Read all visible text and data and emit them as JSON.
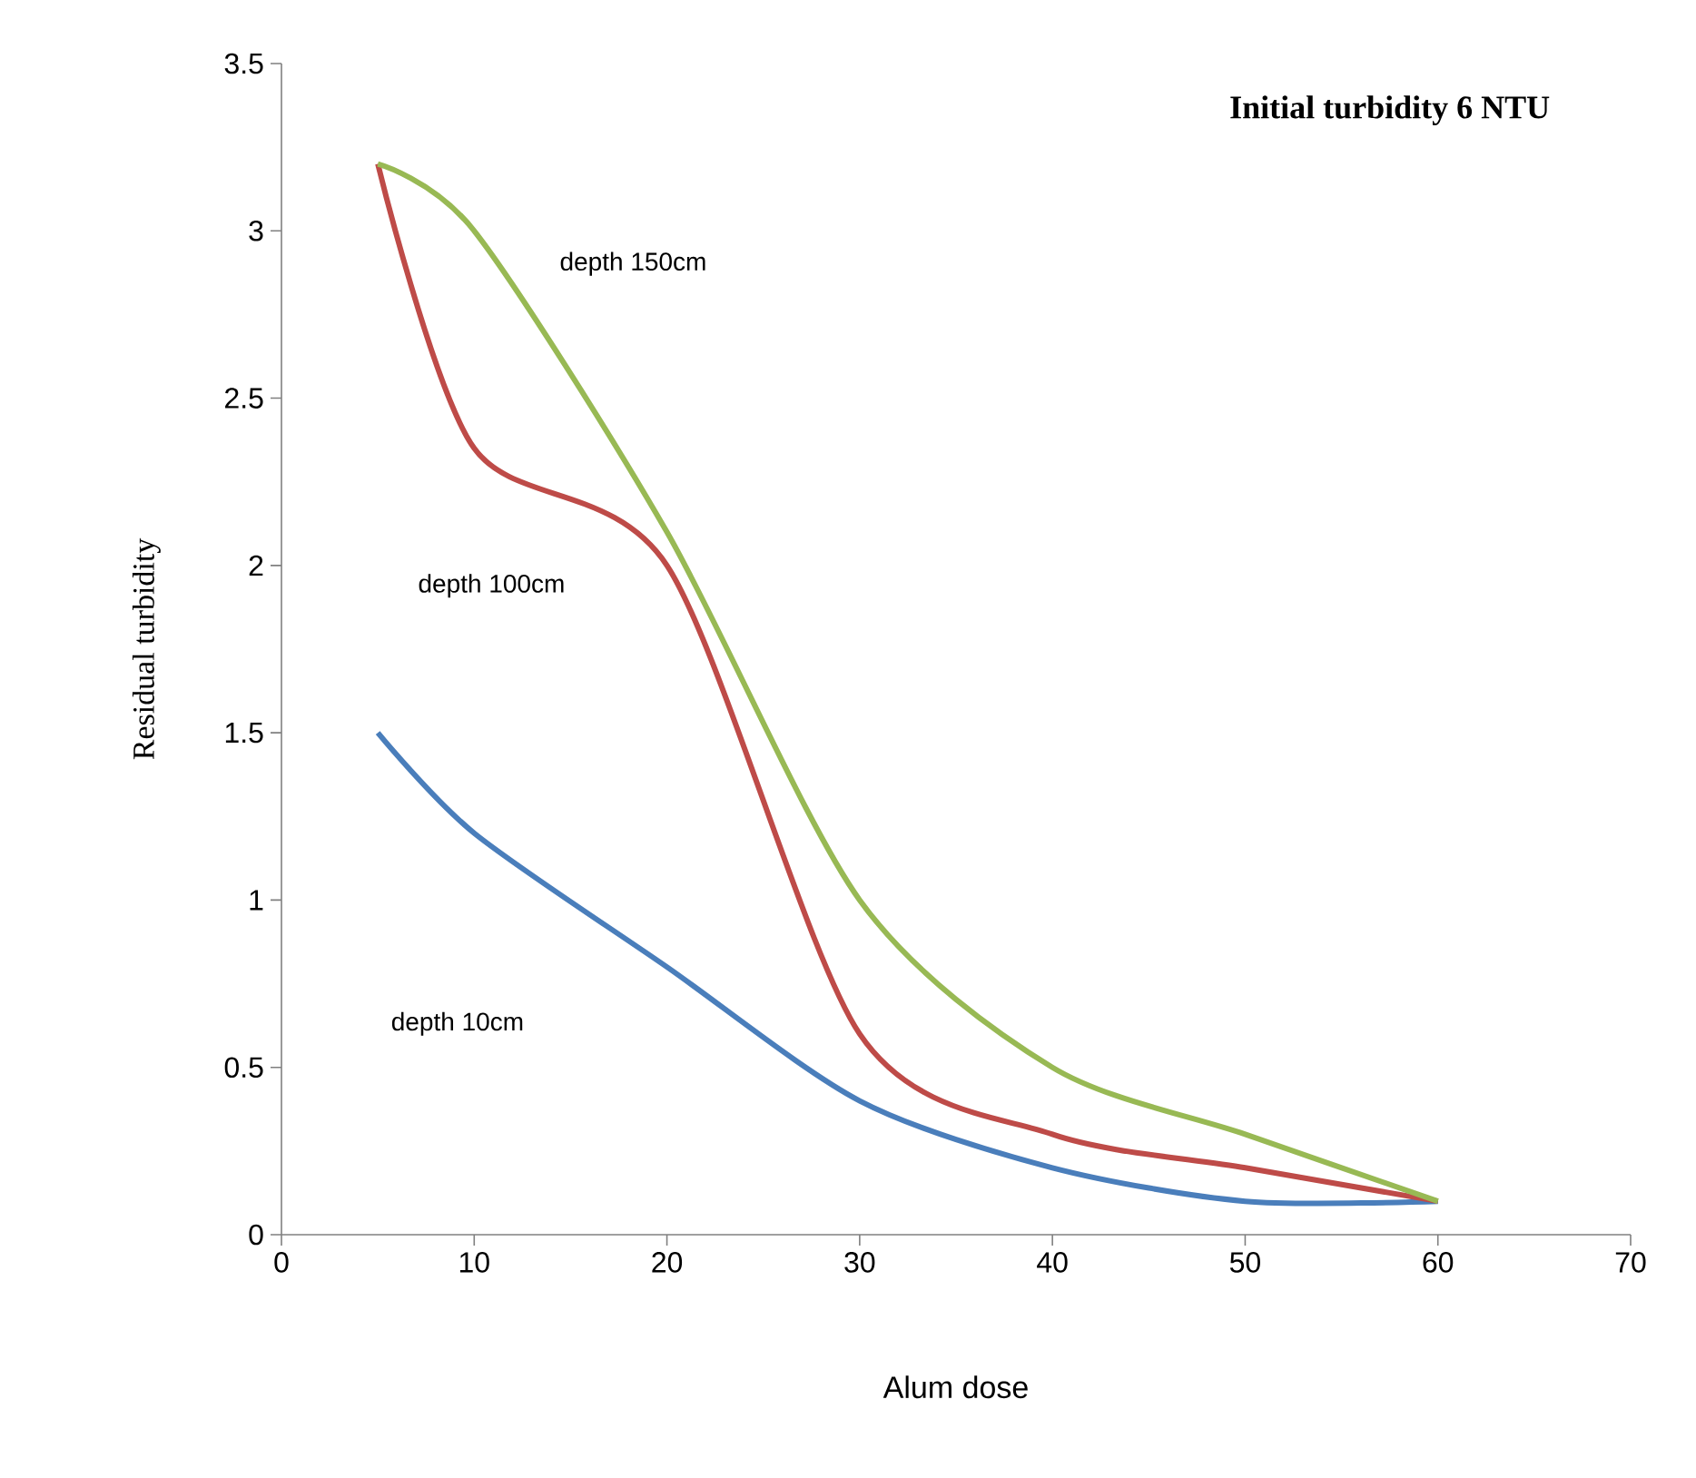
{
  "chart_data": {
    "type": "line",
    "title": "Initial turbidity 6 NTU",
    "xlabel": "Alum dose",
    "ylabel": "Residual turbidity",
    "x": [
      5,
      10,
      20,
      30,
      40,
      50,
      60
    ],
    "series": [
      {
        "color": "#4a7ebb",
        "values": [
          1.5,
          1.2,
          0.8,
          0.4,
          0.2,
          0.1,
          0.1
        ]
      },
      {
        "color": "#be4b48",
        "values": [
          3.2,
          2.35,
          2.0,
          0.6,
          0.3,
          0.2,
          0.1
        ]
      },
      {
        "color": "#98b954",
        "values": [
          3.2,
          3.0,
          2.1,
          1.0,
          0.5,
          0.3,
          0.1
        ]
      }
    ],
    "xlim": [
      0,
      70
    ],
    "ylim": [
      0,
      3.5
    ],
    "xticks": [
      0,
      10,
      20,
      30,
      40,
      50,
      60,
      70
    ],
    "yticks": [
      0,
      0.5,
      1,
      1.5,
      2,
      2.5,
      3,
      3.5
    ],
    "annotations": [
      "depth 150cm",
      "depth 100cm",
      "depth 10cm"
    ]
  }
}
